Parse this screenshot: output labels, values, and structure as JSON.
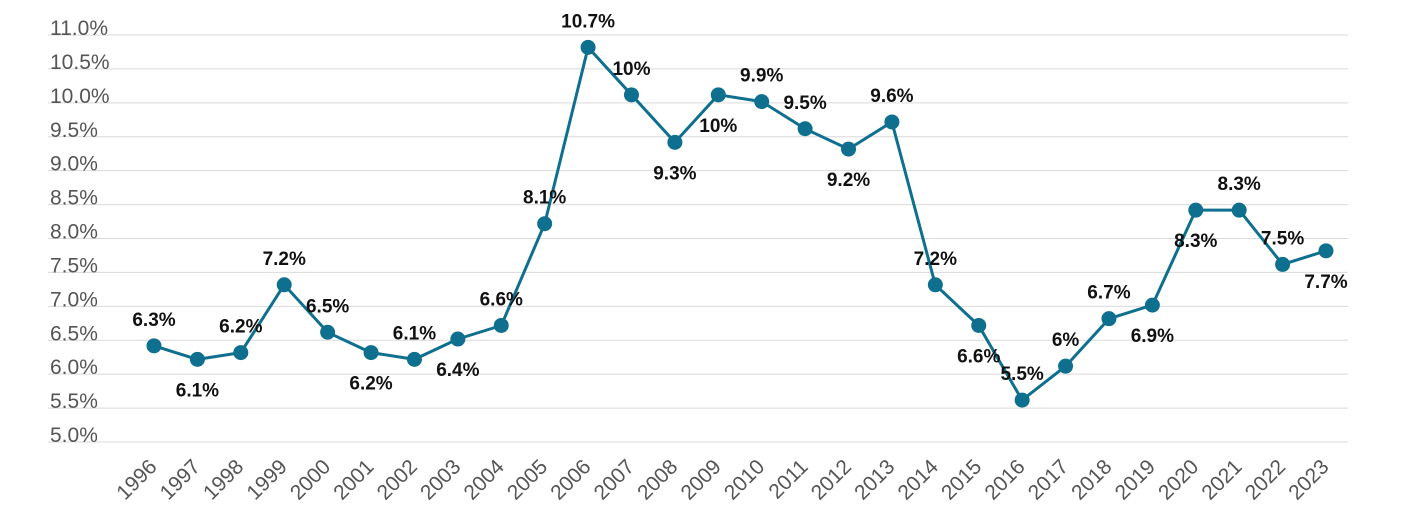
{
  "chart_data": {
    "type": "line",
    "title": "",
    "xlabel": "",
    "ylabel": "",
    "ylim": [
      5.0,
      11.0
    ],
    "yticks": [
      "5.0%",
      "5.5%",
      "6.0%",
      "6.5%",
      "7.0%",
      "7.5%",
      "8.0%",
      "8.5%",
      "9.0%",
      "9.5%",
      "10.0%",
      "10.5%",
      "11.0%"
    ],
    "grid": true,
    "legend": "none",
    "color": "#0e6f8f",
    "categories": [
      "1996",
      "1997",
      "1998",
      "1999",
      "2000",
      "2001",
      "2002",
      "2003",
      "2004",
      "2005",
      "2006",
      "2007",
      "2008",
      "2009",
      "2010",
      "2011",
      "2012",
      "2013",
      "2014",
      "2015",
      "2016",
      "2017",
      "2018",
      "2019",
      "2020",
      "2021",
      "2022",
      "2023"
    ],
    "series": [
      {
        "values": [
          6.3,
          6.1,
          6.2,
          7.2,
          6.5,
          6.2,
          6.1,
          6.4,
          6.6,
          8.1,
          10.7,
          10.0,
          9.3,
          10.0,
          9.9,
          9.5,
          9.2,
          9.6,
          7.2,
          6.6,
          5.5,
          6.0,
          6.7,
          6.9,
          8.3,
          8.3,
          7.5,
          7.7
        ],
        "labels": [
          "6.3%",
          "6.1%",
          "6.2%",
          "7.2%",
          "6.5%",
          "6.2%",
          "6.1%",
          "6.4%",
          "6.6%",
          "8.1%",
          "10.7%",
          "10%",
          "9.3%",
          "10%",
          "9.9%",
          "9.5%",
          "9.2%",
          "9.6%",
          "7.2%",
          "6.6%",
          "5.5%",
          "6%",
          "6.7%",
          "6.9%",
          "8.3%",
          "8.3%",
          "7.5%",
          "7.7%"
        ]
      }
    ]
  }
}
